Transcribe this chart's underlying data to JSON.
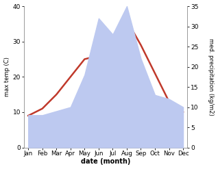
{
  "months": [
    "Jan",
    "Feb",
    "Mar",
    "Apr",
    "May",
    "Jun",
    "Jul",
    "Aug",
    "Sep",
    "Oct",
    "Nov",
    "Dec"
  ],
  "month_x": [
    0,
    1,
    2,
    3,
    4,
    5,
    6,
    7,
    8,
    9,
    10,
    11
  ],
  "temp": [
    9,
    11,
    15,
    20,
    25,
    26,
    31,
    36,
    29,
    21,
    13,
    10
  ],
  "precip": [
    8,
    8,
    9,
    10,
    18,
    32,
    28,
    35,
    22,
    13,
    12,
    10
  ],
  "temp_color": "#c0392b",
  "precip_fill_color": "#bdc9f0",
  "temp_ylim": [
    0,
    40
  ],
  "precip_ylim": [
    0,
    35
  ],
  "temp_yticks": [
    0,
    10,
    20,
    30,
    40
  ],
  "precip_yticks": [
    0,
    5,
    10,
    15,
    20,
    25,
    30,
    35
  ],
  "xlabel": "date (month)",
  "ylabel_left": "max temp (C)",
  "ylabel_right": "med. precipitation (kg/m2)",
  "background": "#ffffff"
}
